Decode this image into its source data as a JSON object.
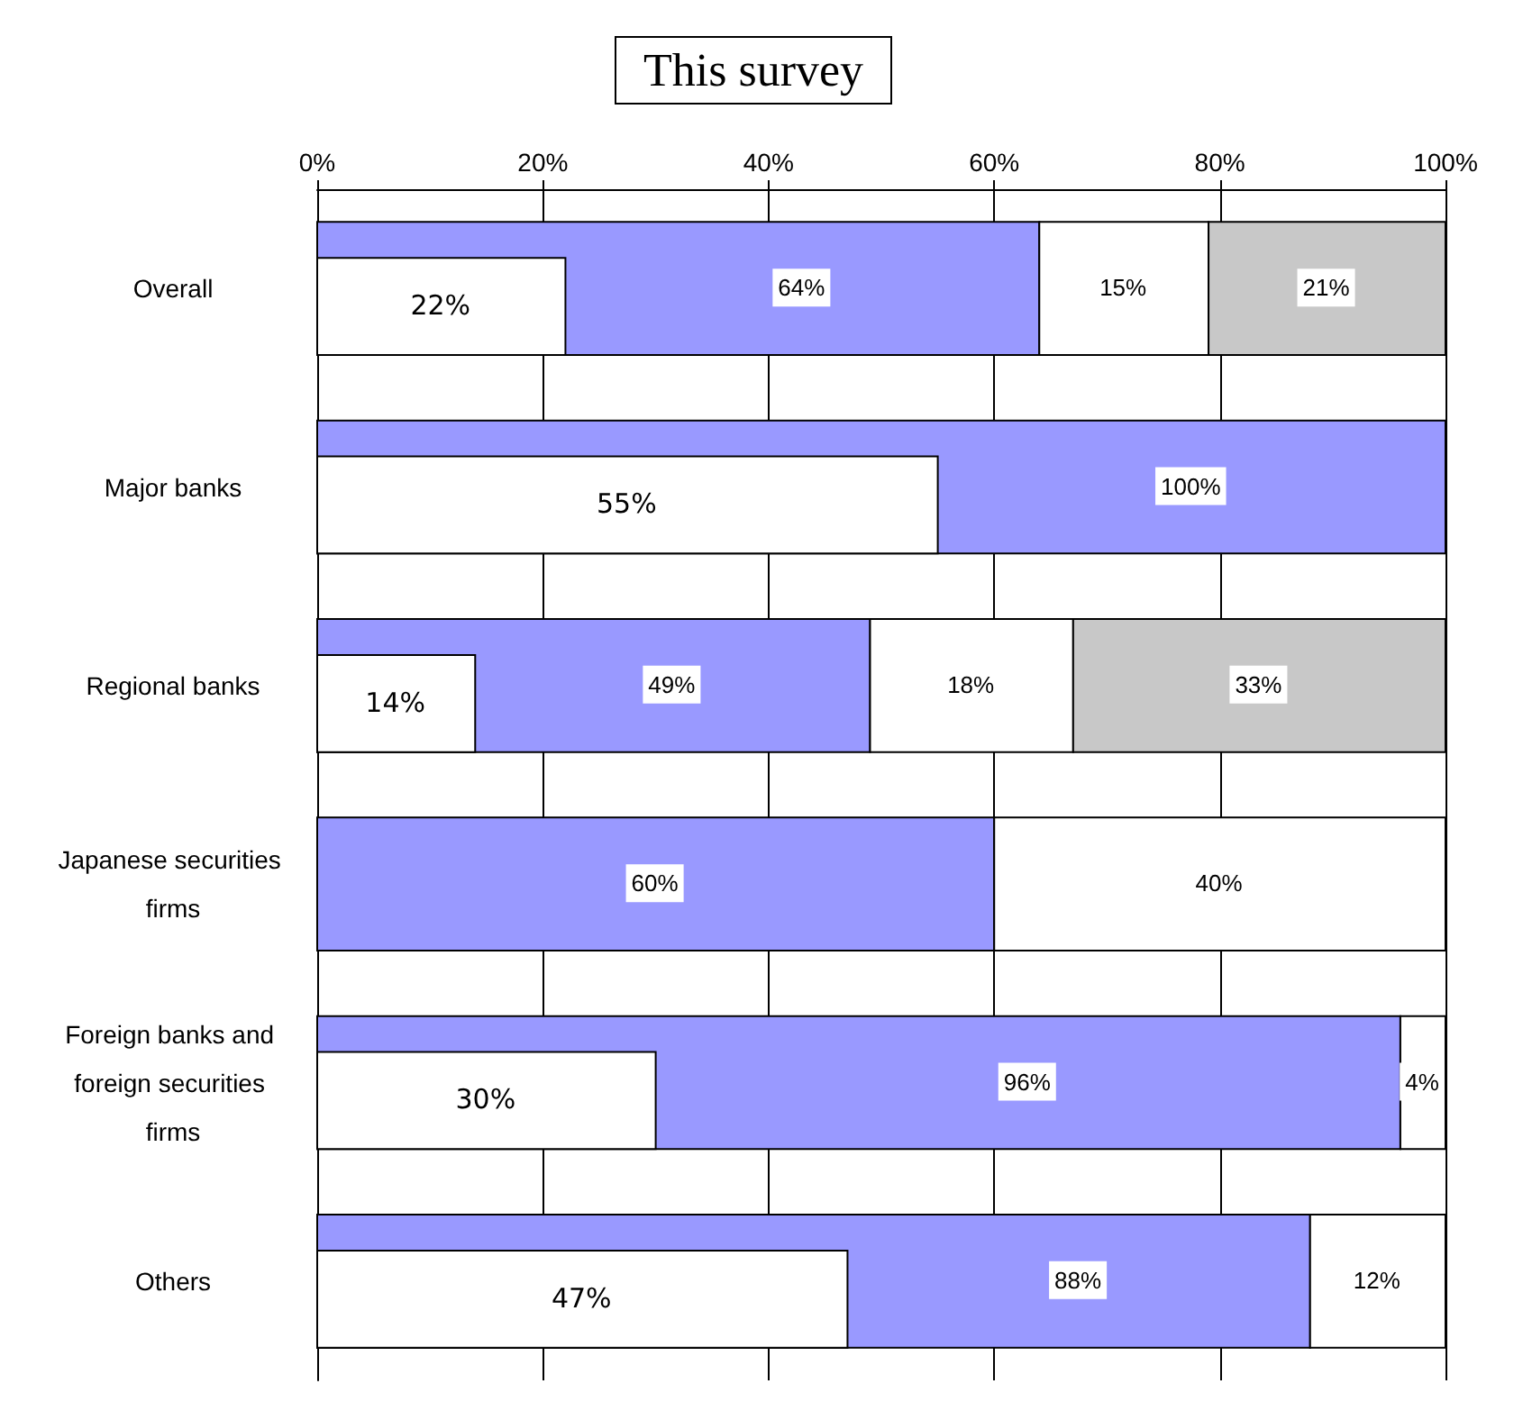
{
  "chart_data": [
    {
      "type": "bar",
      "title": "This survey",
      "orientation": "horizontal",
      "stacked": true,
      "categories": [
        "Overall",
        "Major banks",
        "Regional banks",
        "Japanese securities firms",
        "Foreign banks and foreign securities firms",
        "Others"
      ],
      "series": [
        {
          "color": "#9999ff",
          "values": [
            64,
            100,
            49,
            60,
            96,
            88
          ],
          "value_labels": [
            "64%",
            "100%",
            "49%",
            "60%",
            "96%",
            "88%"
          ]
        },
        {
          "color": "#ffffff",
          "values": [
            15,
            null,
            18,
            40,
            4,
            12
          ],
          "value_labels": [
            "15%",
            null,
            "18%",
            "40%",
            "4%",
            "12%"
          ]
        },
        {
          "color": "#c8c8c8",
          "values": [
            21,
            null,
            33,
            null,
            null,
            null
          ],
          "value_labels": [
            "21%",
            null,
            "33%",
            null,
            null,
            null
          ]
        }
      ],
      "xlim": [
        0,
        100
      ],
      "xticks": [
        {
          "value": 0,
          "label": "0%"
        },
        {
          "value": 20,
          "label": "20%"
        },
        {
          "value": 40,
          "label": "40%"
        },
        {
          "value": 60,
          "label": "60%"
        },
        {
          "value": 80,
          "label": "80%"
        },
        {
          "value": 100,
          "label": "100%"
        }
      ],
      "grid": "x"
    },
    {
      "type": "bar",
      "orientation": "horizontal",
      "categories": [
        "Overall",
        "Major banks",
        "Regional banks",
        "Japanese securities firms",
        "Foreign banks and foreign securities firms",
        "Others"
      ],
      "series": [
        {
          "color": "#ffffff",
          "values": [
            22,
            55,
            14,
            null,
            30,
            47
          ],
          "value_labels": [
            "22%",
            "55%",
            "14%",
            null,
            "30%",
            "47%"
          ]
        }
      ],
      "xlim": [
        0,
        100
      ],
      "xticks": [
        {
          "value": 0,
          "label": null
        },
        {
          "value": 20,
          "label": null
        },
        {
          "value": 40,
          "label": null
        },
        {
          "value": 60,
          "label": null
        },
        {
          "value": 80,
          "label": null
        },
        {
          "value": 100,
          "label": null
        }
      ],
      "tick_labels": false
    }
  ]
}
